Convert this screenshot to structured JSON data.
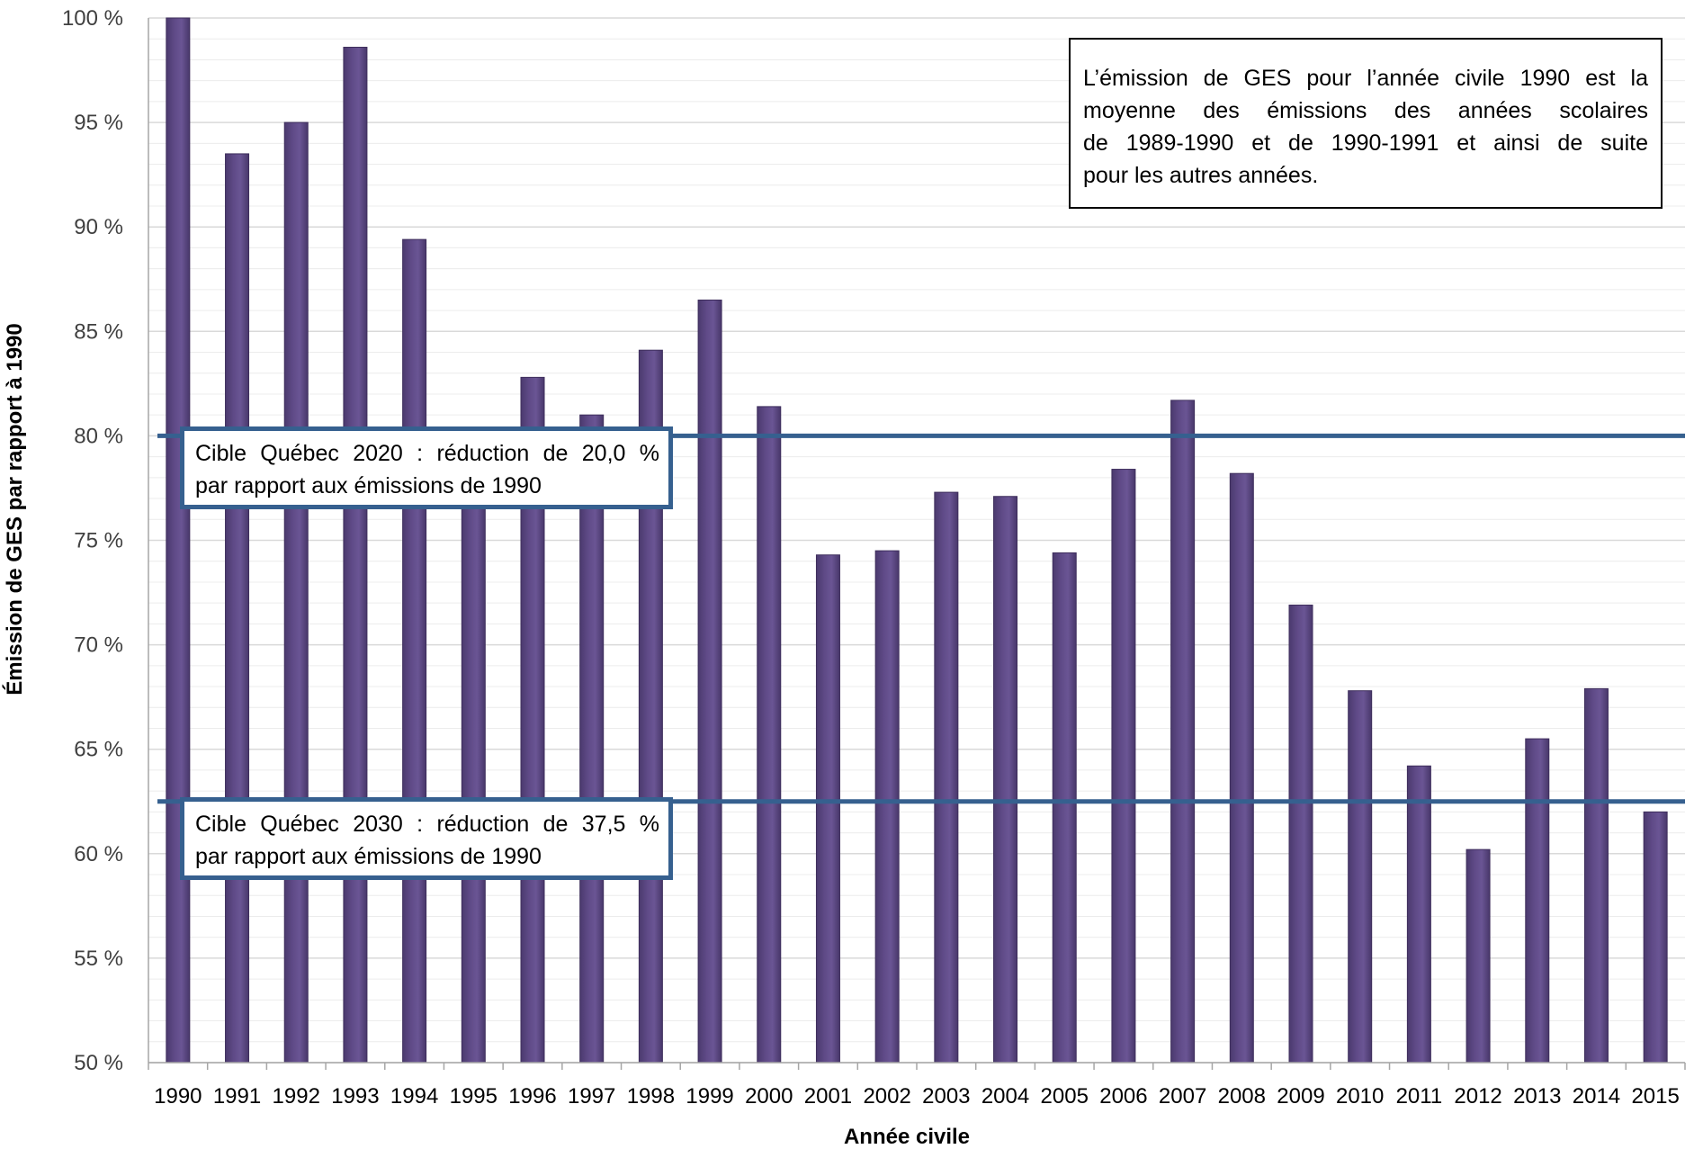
{
  "chart_data": {
    "type": "bar",
    "xlabel": "Année civile",
    "ylabel": "Émission de GES par rapport à 1990",
    "ylim": [
      50,
      100
    ],
    "y_ticks": [
      "50 %",
      "55 %",
      "60 %",
      "65 %",
      "70 %",
      "75 %",
      "80 %",
      "85 %",
      "90 %",
      "95 %",
      "100 %"
    ],
    "y_tick_values": [
      50,
      55,
      60,
      65,
      70,
      75,
      80,
      85,
      90,
      95,
      100
    ],
    "grid": "horizontal",
    "categories": [
      "1990",
      "1991",
      "1992",
      "1993",
      "1994",
      "1995",
      "1996",
      "1997",
      "1998",
      "1999",
      "2000",
      "2001",
      "2002",
      "2003",
      "2004",
      "2005",
      "2006",
      "2007",
      "2008",
      "2009",
      "2010",
      "2011",
      "2012",
      "2013",
      "2014",
      "2015"
    ],
    "values": [
      100.0,
      93.5,
      95.0,
      98.6,
      89.4,
      79.5,
      82.8,
      81.0,
      84.1,
      86.5,
      81.4,
      74.3,
      74.5,
      77.3,
      77.1,
      74.4,
      78.4,
      81.7,
      78.2,
      71.9,
      67.8,
      64.2,
      60.2,
      65.5,
      67.9,
      62.0
    ],
    "reference_lines": [
      {
        "value": 80.0,
        "label_line1": "Cible Québec 2020 : réduction de 20,0 %",
        "label_line2": "par rapport aux émissions de 1990"
      },
      {
        "value": 62.5,
        "label_line1": "Cible Québec 2030 : réduction de 37,5 %",
        "label_line2": "par rapport aux émissions de 1990"
      }
    ],
    "note_lines": [
      "L’émission de GES pour l’année civile 1990 est la",
      "moyenne des émissions des années scolaires",
      "de 1989-1990 et de 1990-1991 et ainsi de suite",
      "pour les autres années."
    ],
    "colors": {
      "bar": "#5f4a87",
      "bar_edge": "#3e2e5c",
      "reference_line": "#36608f",
      "gridline": "#d9d9d9",
      "axis": "#a6a6a6"
    }
  }
}
